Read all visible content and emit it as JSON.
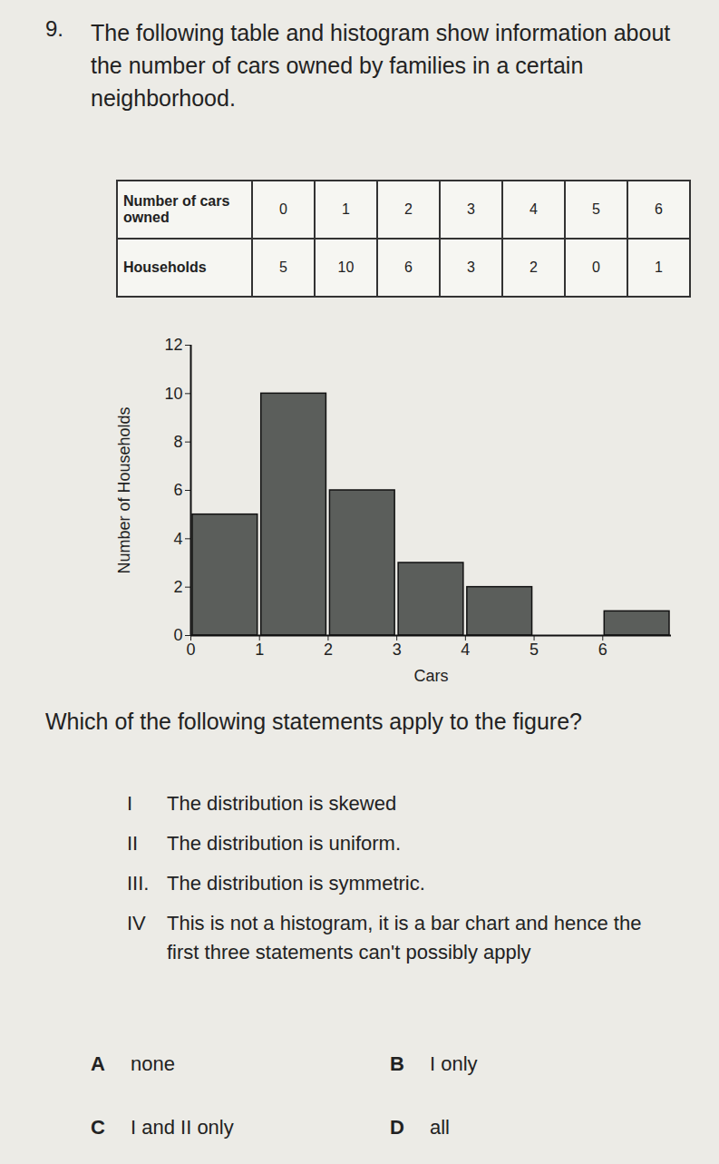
{
  "question": {
    "number": "9.",
    "text": "The following table and histogram show information about the number of cars owned by families in a certain neighborhood."
  },
  "table": {
    "rows": [
      [
        "Number of cars owned",
        0,
        1,
        2,
        3,
        4,
        5,
        6
      ],
      [
        "Households",
        5,
        10,
        6,
        3,
        2,
        0,
        1
      ]
    ]
  },
  "chart_data": {
    "type": "histogram",
    "bins": [
      0,
      1,
      2,
      3,
      4,
      5,
      6,
      7
    ],
    "values": [
      5,
      10,
      6,
      3,
      2,
      0,
      1
    ],
    "color": "#5b5e5b",
    "xlabel": "Cars",
    "ylabel": "Number of Households",
    "xlim": [
      0,
      7
    ],
    "xticks": [
      0,
      1,
      2,
      3,
      4,
      5,
      6
    ],
    "ylim": [
      0,
      12
    ],
    "yticks": [
      0,
      2,
      4,
      6,
      8,
      10,
      12
    ],
    "grid": false
  },
  "prompt": "Which of the following statements apply to the figure?",
  "statements": [
    {
      "label": "I",
      "text": "The distribution is skewed"
    },
    {
      "label": "II",
      "text": "The distribution is uniform."
    },
    {
      "label": "III.",
      "text": "The distribution is symmetric."
    },
    {
      "label": "IV",
      "text": "This is not a histogram, it is a bar chart and hence the first three statements can't possibly apply"
    }
  ],
  "options": [
    {
      "label": "A",
      "text": "none"
    },
    {
      "label": "B",
      "text": "I only"
    },
    {
      "label": "C",
      "text": "I and II only"
    },
    {
      "label": "D",
      "text": "all"
    }
  ]
}
